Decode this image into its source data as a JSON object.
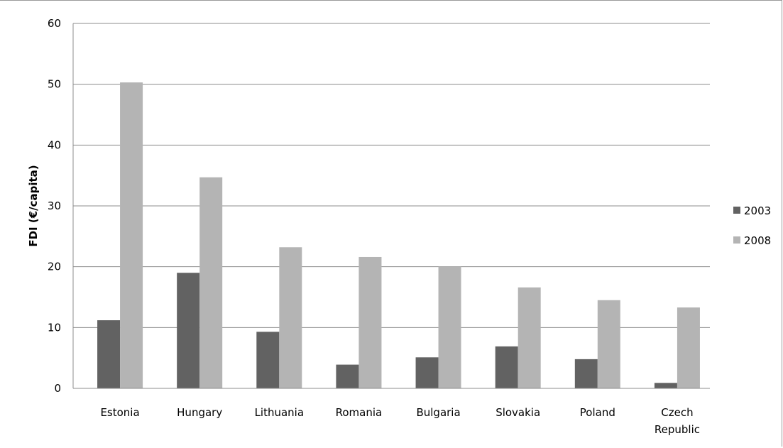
{
  "chart_data": {
    "type": "bar",
    "title": "",
    "xlabel": "",
    "ylabel": "FDI (€/capita)",
    "ylim": [
      0,
      60
    ],
    "yticks": [
      0,
      10,
      20,
      30,
      40,
      50,
      60
    ],
    "grid": true,
    "legend_position": "right",
    "categories": [
      [
        "Estonia"
      ],
      [
        "Hungary"
      ],
      [
        "Lithuania"
      ],
      [
        "Romania"
      ],
      [
        "Bulgaria"
      ],
      [
        "Slovakia"
      ],
      [
        "Poland"
      ],
      [
        "Czech",
        "Republic"
      ]
    ],
    "series": [
      {
        "name": "2003",
        "color": "#626262",
        "values": [
          11.2,
          19.0,
          9.3,
          3.9,
          5.1,
          6.9,
          4.8,
          0.9
        ]
      },
      {
        "name": "2008",
        "color": "#b4b4b4",
        "values": [
          50.3,
          34.7,
          23.2,
          21.6,
          20.0,
          16.6,
          14.5,
          13.3
        ]
      }
    ]
  }
}
